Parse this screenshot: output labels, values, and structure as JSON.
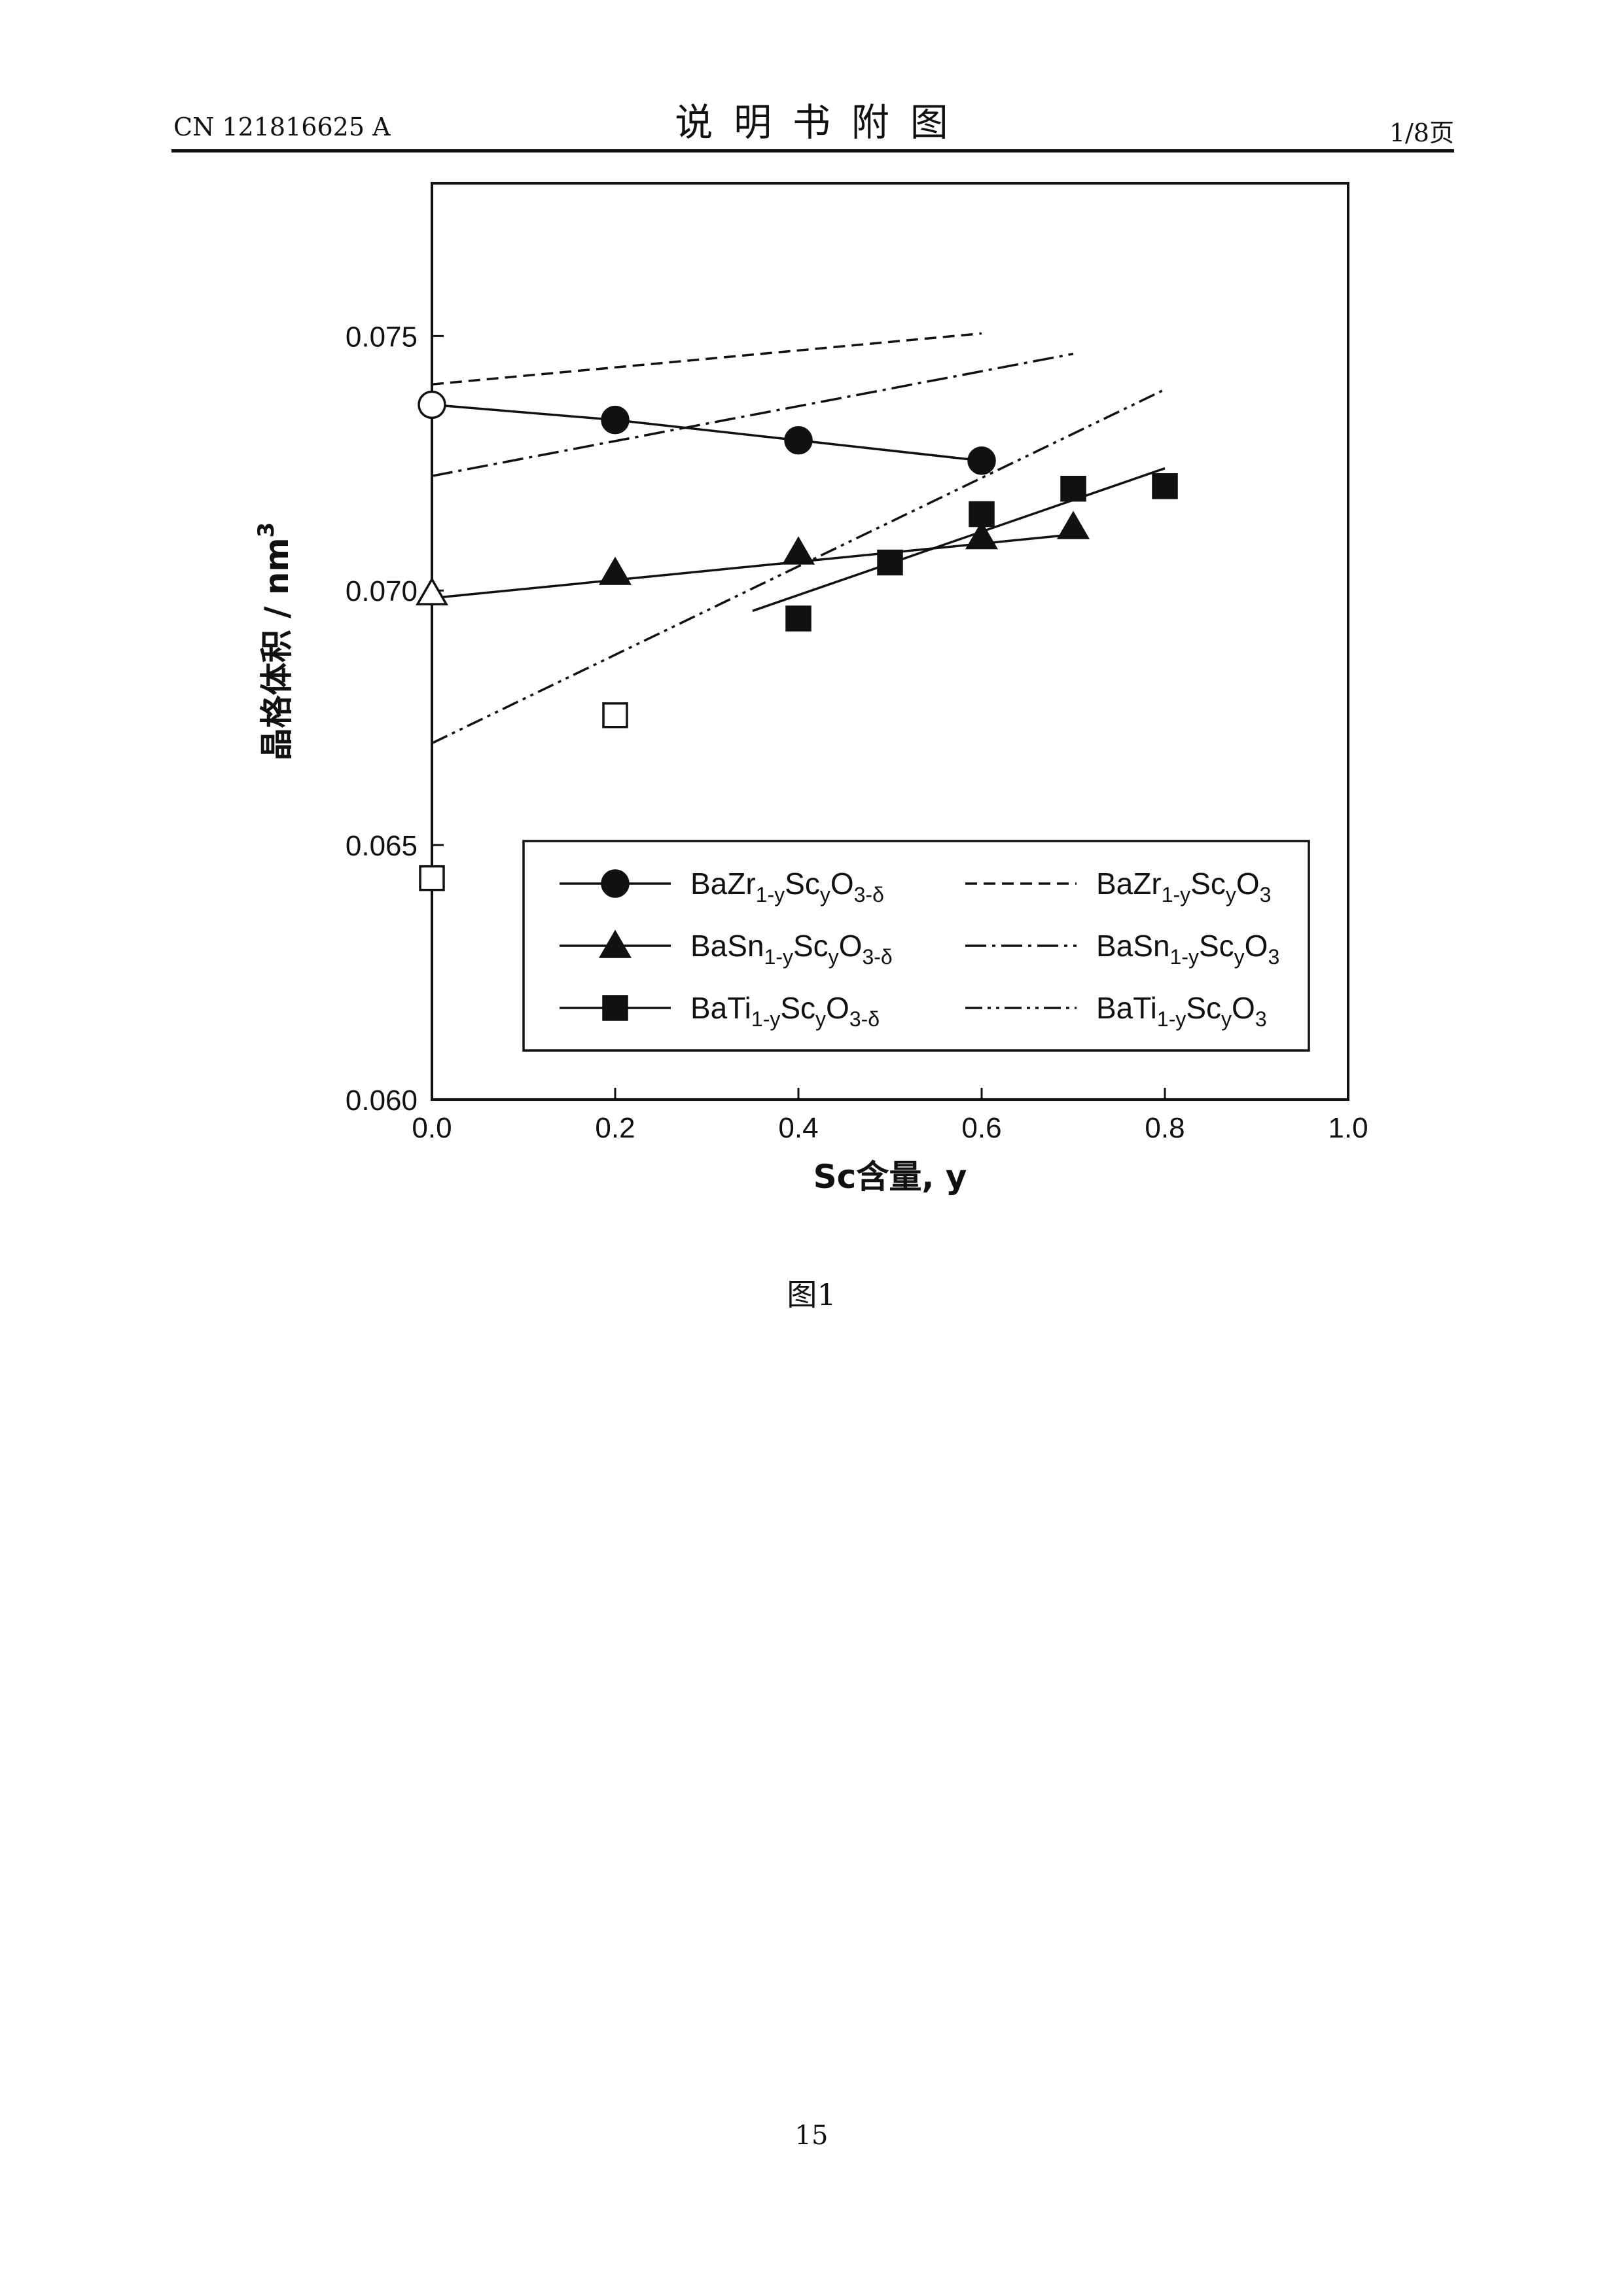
{
  "header": {
    "doc_number": "CN 121816625 A",
    "section_title": "说明书附图",
    "page_of_total": "1/8页"
  },
  "figure_caption": "图1",
  "page_number": "15",
  "chart_data": {
    "type": "scatter",
    "title": "",
    "xlabel": "Sc含量, y",
    "ylabel": "晶格体积 / nm",
    "ylabel_superscript": "3",
    "xlim": [
      0.0,
      1.0
    ],
    "ylim": [
      0.06,
      0.078
    ],
    "xticks": [
      "0.0",
      "0.2",
      "0.4",
      "0.6",
      "0.8",
      "1.0"
    ],
    "yticks": [
      "0.060",
      "0.065",
      "0.070",
      "0.075"
    ],
    "xtick_values": [
      0.0,
      0.2,
      0.4,
      0.6,
      0.8,
      1.0
    ],
    "ytick_values": [
      0.06,
      0.065,
      0.07,
      0.075
    ],
    "grid": false,
    "legend_position": "lower-center",
    "series": [
      {
        "name": "BaZr1-yScyO3-δ",
        "name_parts": [
          "BaZr",
          "1-y",
          "Sc",
          "y",
          "O",
          "3-δ"
        ],
        "marker": "circle",
        "points": [
          {
            "x": 0.0,
            "y": 0.07365,
            "filled": false
          },
          {
            "x": 0.2,
            "y": 0.07335,
            "filled": true
          },
          {
            "x": 0.4,
            "y": 0.07295,
            "filled": true
          },
          {
            "x": 0.6,
            "y": 0.07255,
            "filled": true
          }
        ],
        "line": "solid",
        "line_points": [
          [
            0.0,
            0.07365
          ],
          [
            0.2,
            0.07335
          ],
          [
            0.4,
            0.07295
          ],
          [
            0.6,
            0.07255
          ]
        ]
      },
      {
        "name": "BaSn1-yScyO3-δ",
        "name_parts": [
          "BaSn",
          "1-y",
          "Sc",
          "y",
          "O",
          "3-δ"
        ],
        "marker": "triangle",
        "points": [
          {
            "x": 0.0,
            "y": 0.06995,
            "filled": false
          },
          {
            "x": 0.2,
            "y": 0.07035,
            "filled": true
          },
          {
            "x": 0.4,
            "y": 0.07075,
            "filled": true
          },
          {
            "x": 0.6,
            "y": 0.07105,
            "filled": true
          },
          {
            "x": 0.7,
            "y": 0.07125,
            "filled": true
          }
        ],
        "line": "solid",
        "line_points": [
          [
            0.0,
            0.06985
          ],
          [
            0.7,
            0.0711
          ]
        ]
      },
      {
        "name": "BaTi1-yScyO3-δ",
        "name_parts": [
          "BaTi",
          "1-y",
          "Sc",
          "y",
          "O",
          "3-δ"
        ],
        "marker": "square",
        "points": [
          {
            "x": 0.0,
            "y": 0.06435,
            "filled": false
          },
          {
            "x": 0.2,
            "y": 0.06755,
            "filled": false
          },
          {
            "x": 0.4,
            "y": 0.06945,
            "filled": true
          },
          {
            "x": 0.5,
            "y": 0.07055,
            "filled": true
          },
          {
            "x": 0.6,
            "y": 0.0715,
            "filled": true
          },
          {
            "x": 0.7,
            "y": 0.072,
            "filled": true
          },
          {
            "x": 0.8,
            "y": 0.07205,
            "filled": true
          }
        ],
        "line": "solid",
        "line_points": [
          [
            0.35,
            0.0696
          ],
          [
            0.8,
            0.0724
          ]
        ]
      },
      {
        "name": "BaZr1-yScyO3",
        "name_parts": [
          "BaZr",
          "1-y",
          "Sc",
          "y",
          "O",
          "3",
          "",
          ""
        ],
        "marker": "none",
        "line": "dashed",
        "line_points": [
          [
            0.0,
            0.07405
          ],
          [
            0.6,
            0.07505
          ]
        ]
      },
      {
        "name": "BaSn1-yScyO3",
        "name_parts": [
          "BaSn",
          "1-y",
          "Sc",
          "y",
          "O",
          "3",
          "",
          ""
        ],
        "marker": "none",
        "line": "dash-dot",
        "line_points": [
          [
            0.0,
            0.07225
          ],
          [
            0.7,
            0.07465
          ]
        ]
      },
      {
        "name": "BaTi1-yScyO3",
        "name_parts": [
          "BaTi",
          "1-y",
          "Sc",
          "y",
          "O",
          "3",
          "",
          ""
        ],
        "marker": "none",
        "line": "dash-dot-dot",
        "line_points": [
          [
            0.0,
            0.067
          ],
          [
            0.8,
            0.07395
          ]
        ]
      }
    ]
  }
}
